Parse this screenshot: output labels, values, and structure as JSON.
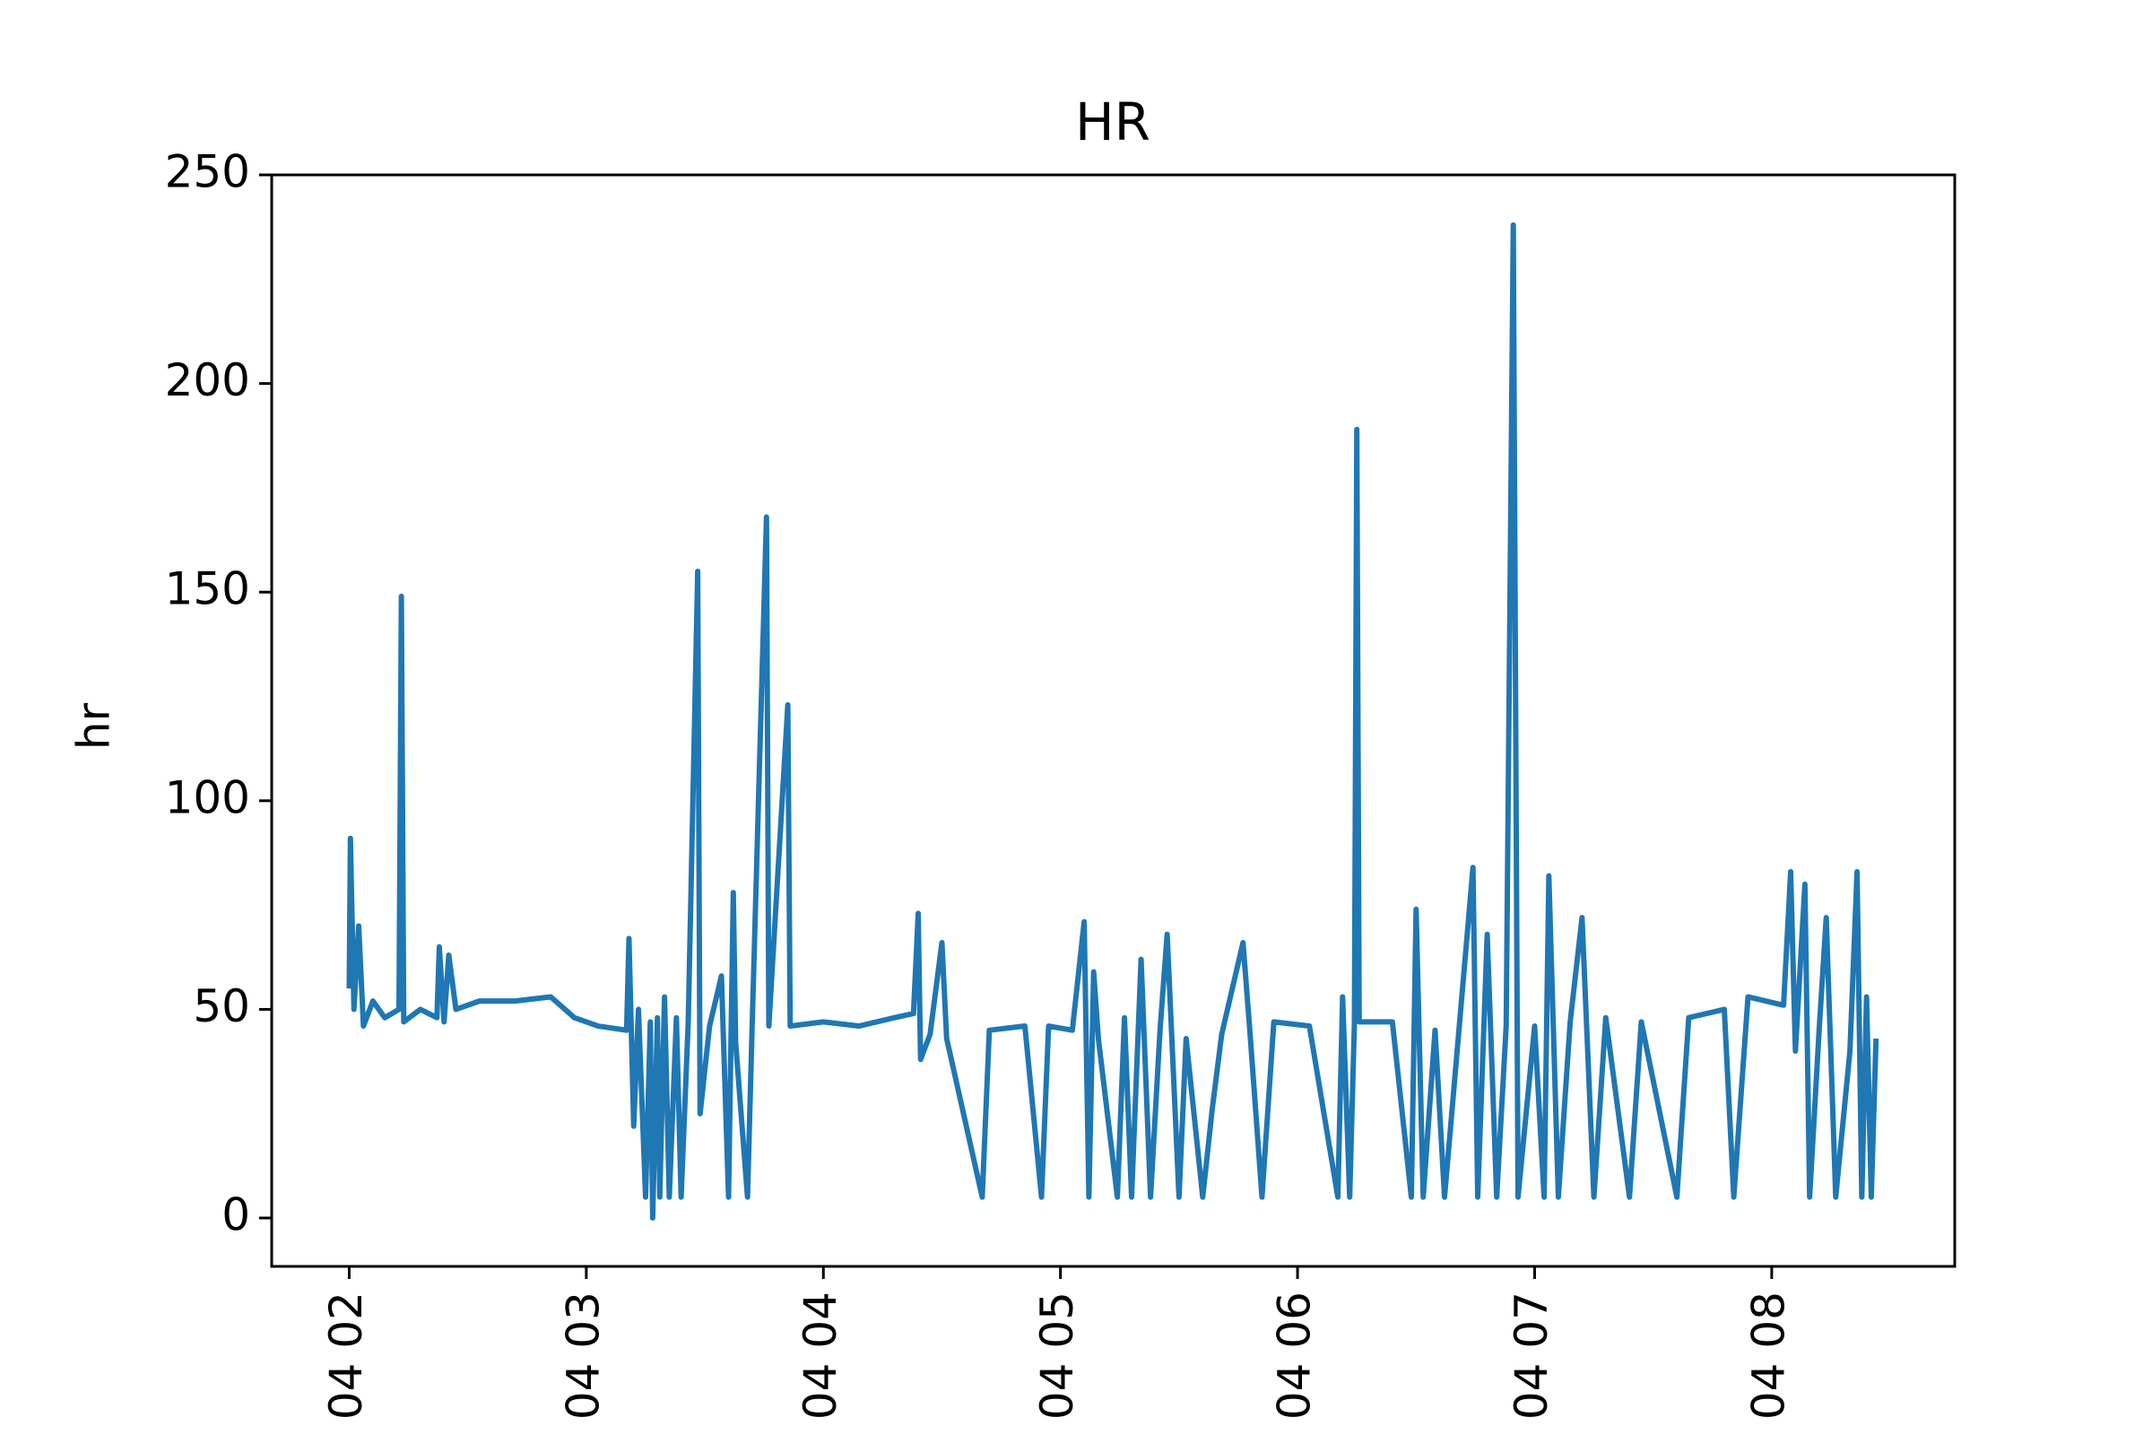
{
  "chart_data": {
    "type": "line",
    "title": "HR",
    "y_label": "hr",
    "x": [
      2.0,
      2.005,
      2.02,
      2.04,
      2.06,
      2.1,
      2.15,
      2.21,
      2.22,
      2.23,
      2.3,
      2.37,
      2.38,
      2.4,
      2.42,
      2.45,
      2.55,
      2.7,
      2.85,
      2.95,
      3.05,
      3.17,
      3.18,
      3.2,
      3.22,
      3.25,
      3.27,
      3.28,
      3.3,
      3.31,
      3.33,
      3.35,
      3.38,
      3.4,
      3.43,
      3.47,
      3.48,
      3.52,
      3.57,
      3.6,
      3.62,
      3.63,
      3.68,
      3.7,
      3.76,
      3.77,
      3.85,
      3.86,
      4.0,
      4.15,
      4.3,
      4.38,
      4.4,
      4.41,
      4.45,
      4.5,
      4.52,
      4.67,
      4.7,
      4.85,
      4.92,
      4.95,
      5.05,
      5.1,
      5.12,
      5.14,
      5.16,
      5.24,
      5.27,
      5.3,
      5.34,
      5.38,
      5.42,
      5.45,
      5.5,
      5.53,
      5.6,
      5.64,
      5.68,
      5.77,
      5.8,
      5.85,
      5.9,
      6.05,
      6.17,
      6.19,
      6.22,
      6.24,
      6.25,
      6.26,
      6.4,
      6.48,
      6.5,
      6.53,
      6.58,
      6.62,
      6.74,
      6.76,
      6.8,
      6.84,
      6.88,
      6.91,
      6.93,
      7.0,
      7.04,
      7.06,
      7.1,
      7.15,
      7.2,
      7.25,
      7.3,
      7.4,
      7.45,
      7.6,
      7.65,
      7.8,
      7.84,
      7.9,
      8.05,
      8.08,
      8.1,
      8.14,
      8.16,
      8.2,
      8.23,
      8.27,
      8.33,
      8.36,
      8.38,
      8.4,
      8.42,
      8.44
    ],
    "series": [
      {
        "name": "hr",
        "color": "#1f77b4",
        "values": [
          55,
          91,
          50,
          70,
          46,
          52,
          48,
          50,
          149,
          47,
          50,
          48,
          65,
          47,
          63,
          50,
          52,
          52,
          53,
          48,
          46,
          45,
          67,
          22,
          50,
          5,
          47,
          0,
          48,
          5,
          53,
          5,
          48,
          5,
          47,
          155,
          25,
          46,
          58,
          5,
          78,
          42,
          5,
          47,
          168,
          46,
          123,
          46,
          47,
          46,
          48,
          49,
          73,
          38,
          44,
          66,
          43,
          5,
          45,
          46,
          5,
          46,
          45,
          71,
          5,
          59,
          43,
          5,
          48,
          5,
          62,
          5,
          45,
          68,
          5,
          43,
          5,
          26,
          44,
          66,
          44,
          5,
          47,
          46,
          5,
          53,
          5,
          47,
          189,
          47,
          47,
          5,
          74,
          5,
          45,
          5,
          84,
          5,
          68,
          5,
          46,
          238,
          5,
          46,
          5,
          82,
          5,
          47,
          72,
          5,
          48,
          5,
          47,
          5,
          48,
          50,
          5,
          53,
          51,
          83,
          40,
          80,
          5,
          45,
          72,
          5,
          40,
          83,
          5,
          53,
          5,
          43
        ]
      }
    ],
    "xlim": [
      1.673,
      8.772
    ],
    "xticks": [
      {
        "value": 2,
        "label": "04 02"
      },
      {
        "value": 3,
        "label": "04 03"
      },
      {
        "value": 4,
        "label": "04 04"
      },
      {
        "value": 5,
        "label": "04 05"
      },
      {
        "value": 6,
        "label": "04 06"
      },
      {
        "value": 7,
        "label": "04 07"
      },
      {
        "value": 8,
        "label": "04 08"
      }
    ],
    "ylim": [
      -11.6,
      250
    ],
    "yticks": [
      0,
      50,
      100,
      150,
      200,
      250
    ],
    "grid": false
  }
}
